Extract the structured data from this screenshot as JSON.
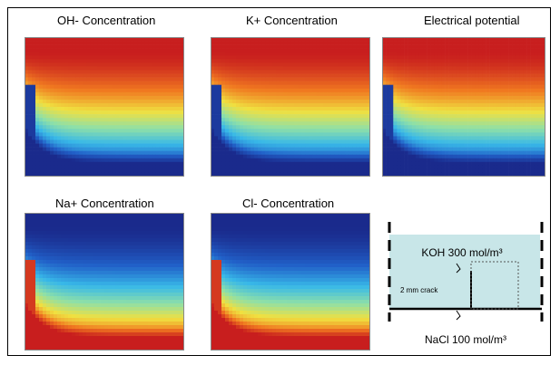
{
  "panels": [
    {
      "id": "oh",
      "title": "OH- Concentration",
      "profile": "high-top"
    },
    {
      "id": "k",
      "title": "K+ Concentration",
      "profile": "high-top"
    },
    {
      "id": "potential",
      "title": "Electrical potential",
      "profile": "high-top"
    },
    {
      "id": "na",
      "title": "Na+ Concentration",
      "profile": "low-top"
    },
    {
      "id": "cl",
      "title": "Cl- Concentration",
      "profile": "low-top"
    }
  ],
  "axis_exponent": "x 10⁻³",
  "colormap": [
    "#1a2a8c",
    "#2160c8",
    "#38b8e8",
    "#8ee0a8",
    "#f0e040",
    "#f07820",
    "#c81e1e"
  ],
  "schematic": {
    "top_solution": "KOH 300 mol/m³",
    "crack_label": "2 mm crack",
    "bottom_solution": "NaCl 100 mol/m³",
    "fill_color": "#c8e6e8"
  }
}
